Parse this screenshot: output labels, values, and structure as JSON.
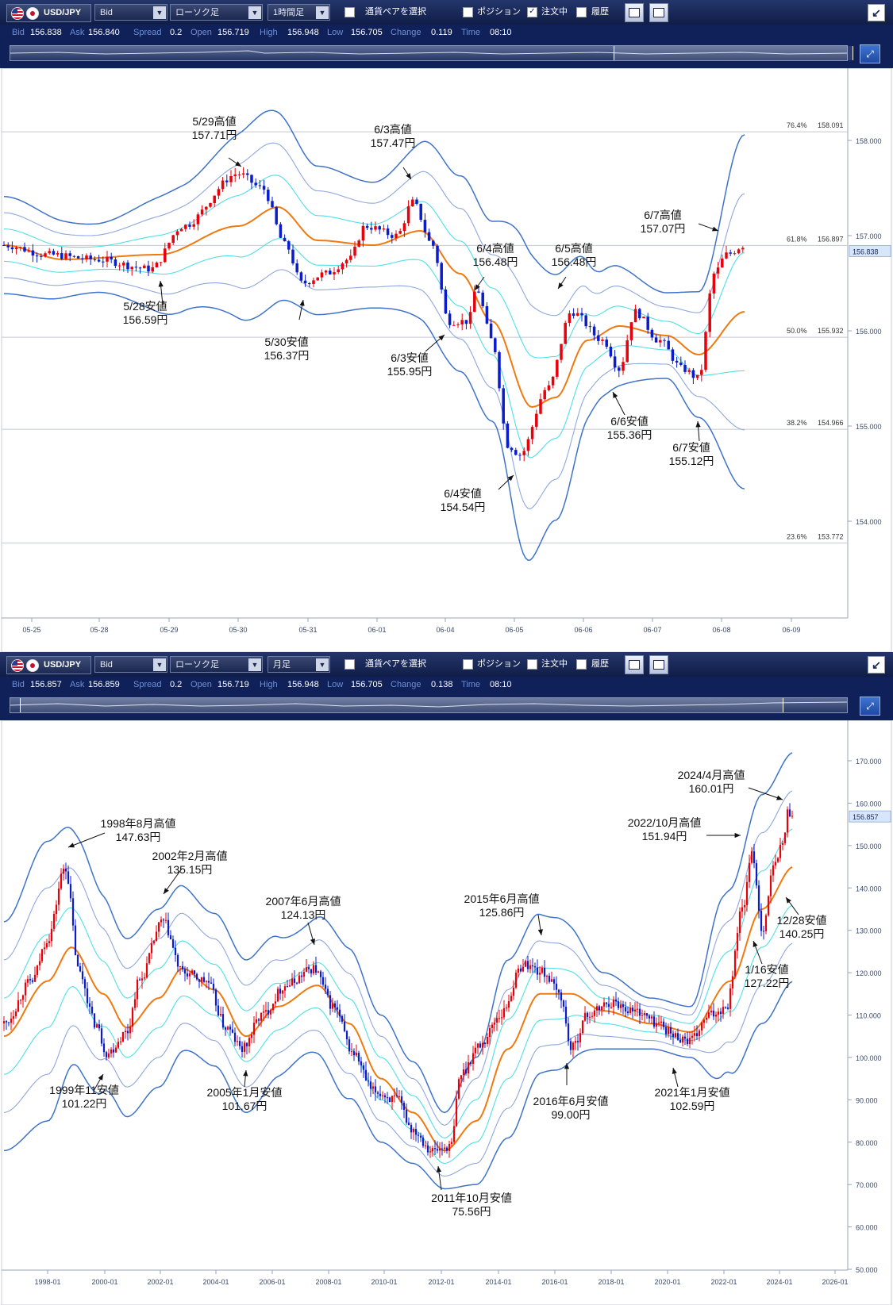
{
  "panels": [
    {
      "id": "top",
      "toolbar": {
        "pair": "USD/JPY",
        "price_type": "Bid",
        "chart_type": "ローソク足",
        "timeframe": "1時間足",
        "select_pair": "通貨ペアを選択",
        "position": "ポジション",
        "orders": "注文中",
        "orders_checked": true,
        "history": "履歴"
      },
      "info": {
        "bid_label": "Bid",
        "bid": "156.838",
        "ask_label": "Ask",
        "ask": "156.840",
        "spread_label": "Spread",
        "spread": "0.2",
        "open_label": "Open",
        "open": "156.719",
        "high_label": "High",
        "high": "156.948",
        "low_label": "Low",
        "low": "156.705",
        "change_label": "Change",
        "change": "0.119",
        "time_label": "Time",
        "time": "08:10"
      },
      "current_price_tag": "156.838",
      "axis": {
        "y_ticks": [
          "158.000",
          "157.000",
          "156.000",
          "155.000",
          "154.000"
        ],
        "x_ticks": [
          "05-25",
          "05-28",
          "05-29",
          "05-30",
          "05-31",
          "06-01",
          "06-04",
          "06-05",
          "06-06",
          "06-07",
          "06-08",
          "06-09"
        ]
      },
      "fibonacci": [
        {
          "pct": "76.4%",
          "price": "158.091"
        },
        {
          "pct": "61.8%",
          "price": "156.897"
        },
        {
          "pct": "50.0%",
          "price": "155.932"
        },
        {
          "pct": "38.2%",
          "price": "154.966"
        },
        {
          "pct": "23.6%",
          "price": "153.772"
        }
      ],
      "annotations": [
        {
          "line1": "5/29高値",
          "line2": "157.71円"
        },
        {
          "line1": "6/3高値",
          "line2": "157.47円"
        },
        {
          "line1": "6/7高値",
          "line2": "157.07円"
        },
        {
          "line1": "6/4高値",
          "line2": "156.48円"
        },
        {
          "line1": "6/5高値",
          "line2": "156.48円"
        },
        {
          "line1": "5/28安値",
          "line2": "156.59円"
        },
        {
          "line1": "5/30安値",
          "line2": "156.37円"
        },
        {
          "line1": "6/3安値",
          "line2": "155.95円"
        },
        {
          "line1": "6/6安値",
          "line2": "155.36円"
        },
        {
          "line1": "6/7安値",
          "line2": "155.12円"
        },
        {
          "line1": "6/4安値",
          "line2": "154.54円"
        }
      ]
    },
    {
      "id": "bottom",
      "toolbar": {
        "pair": "USD/JPY",
        "price_type": "Bid",
        "chart_type": "ローソク足",
        "timeframe": "月足",
        "select_pair": "通貨ペアを選択",
        "position": "ポジション",
        "orders": "注文中",
        "orders_checked": false,
        "history": "履歴"
      },
      "info": {
        "bid_label": "Bid",
        "bid": "156.857",
        "ask_label": "Ask",
        "ask": "156.859",
        "spread_label": "Spread",
        "spread": "0.2",
        "open_label": "Open",
        "open": "156.719",
        "high_label": "High",
        "high": "156.948",
        "low_label": "Low",
        "low": "156.705",
        "change_label": "Change",
        "change": "0.138",
        "time_label": "Time",
        "time": "08:10"
      },
      "current_price_tag": "156.857",
      "axis": {
        "y_ticks": [
          "170.000",
          "160.000",
          "150.000",
          "140.000",
          "130.000",
          "120.000",
          "110.000",
          "100.000",
          "90.000",
          "80.000",
          "70.000",
          "60.000",
          "50.000"
        ],
        "x_ticks": [
          "1998-01",
          "2000-01",
          "2002-01",
          "2004-01",
          "2006-01",
          "2008-01",
          "2010-01",
          "2012-01",
          "2014-01",
          "2016-01",
          "2018-01",
          "2020-01",
          "2022-01",
          "2024-01",
          "2026-01"
        ]
      },
      "annotations": [
        {
          "line1": "2024/4月高値",
          "line2": "160.01円"
        },
        {
          "line1": "1998年8月高値",
          "line2": "147.63円"
        },
        {
          "line1": "2022/10月高値",
          "line2": "151.94円"
        },
        {
          "line1": "2002年2月高値",
          "line2": "135.15円"
        },
        {
          "line1": "2007年6月高値",
          "line2": "124.13円"
        },
        {
          "line1": "2015年6月高値",
          "line2": "125.86円"
        },
        {
          "line1": "12/28安値",
          "line2": "140.25円"
        },
        {
          "line1": "1/16安値",
          "line2": "127.22円"
        },
        {
          "line1": "1999年11安値",
          "line2": "101.22円"
        },
        {
          "line1": "2005年1月安値",
          "line2": "101.67円"
        },
        {
          "line1": "2016年6月安値",
          "line2": "99.00円"
        },
        {
          "line1": "2021年1月安値",
          "line2": "102.59円"
        },
        {
          "line1": "2011年10月安値",
          "line2": "75.56円"
        }
      ]
    }
  ],
  "colors": {
    "toolbar_bg": "#1b2a5c",
    "up_candle": "#e8000b",
    "down_candle": "#0a1ccc",
    "ma": "#f07a10",
    "band_sigma1": "#4fe0e6",
    "band_sigma2": "#8fa7dc",
    "band_sigma3": "#3f73c9"
  }
}
